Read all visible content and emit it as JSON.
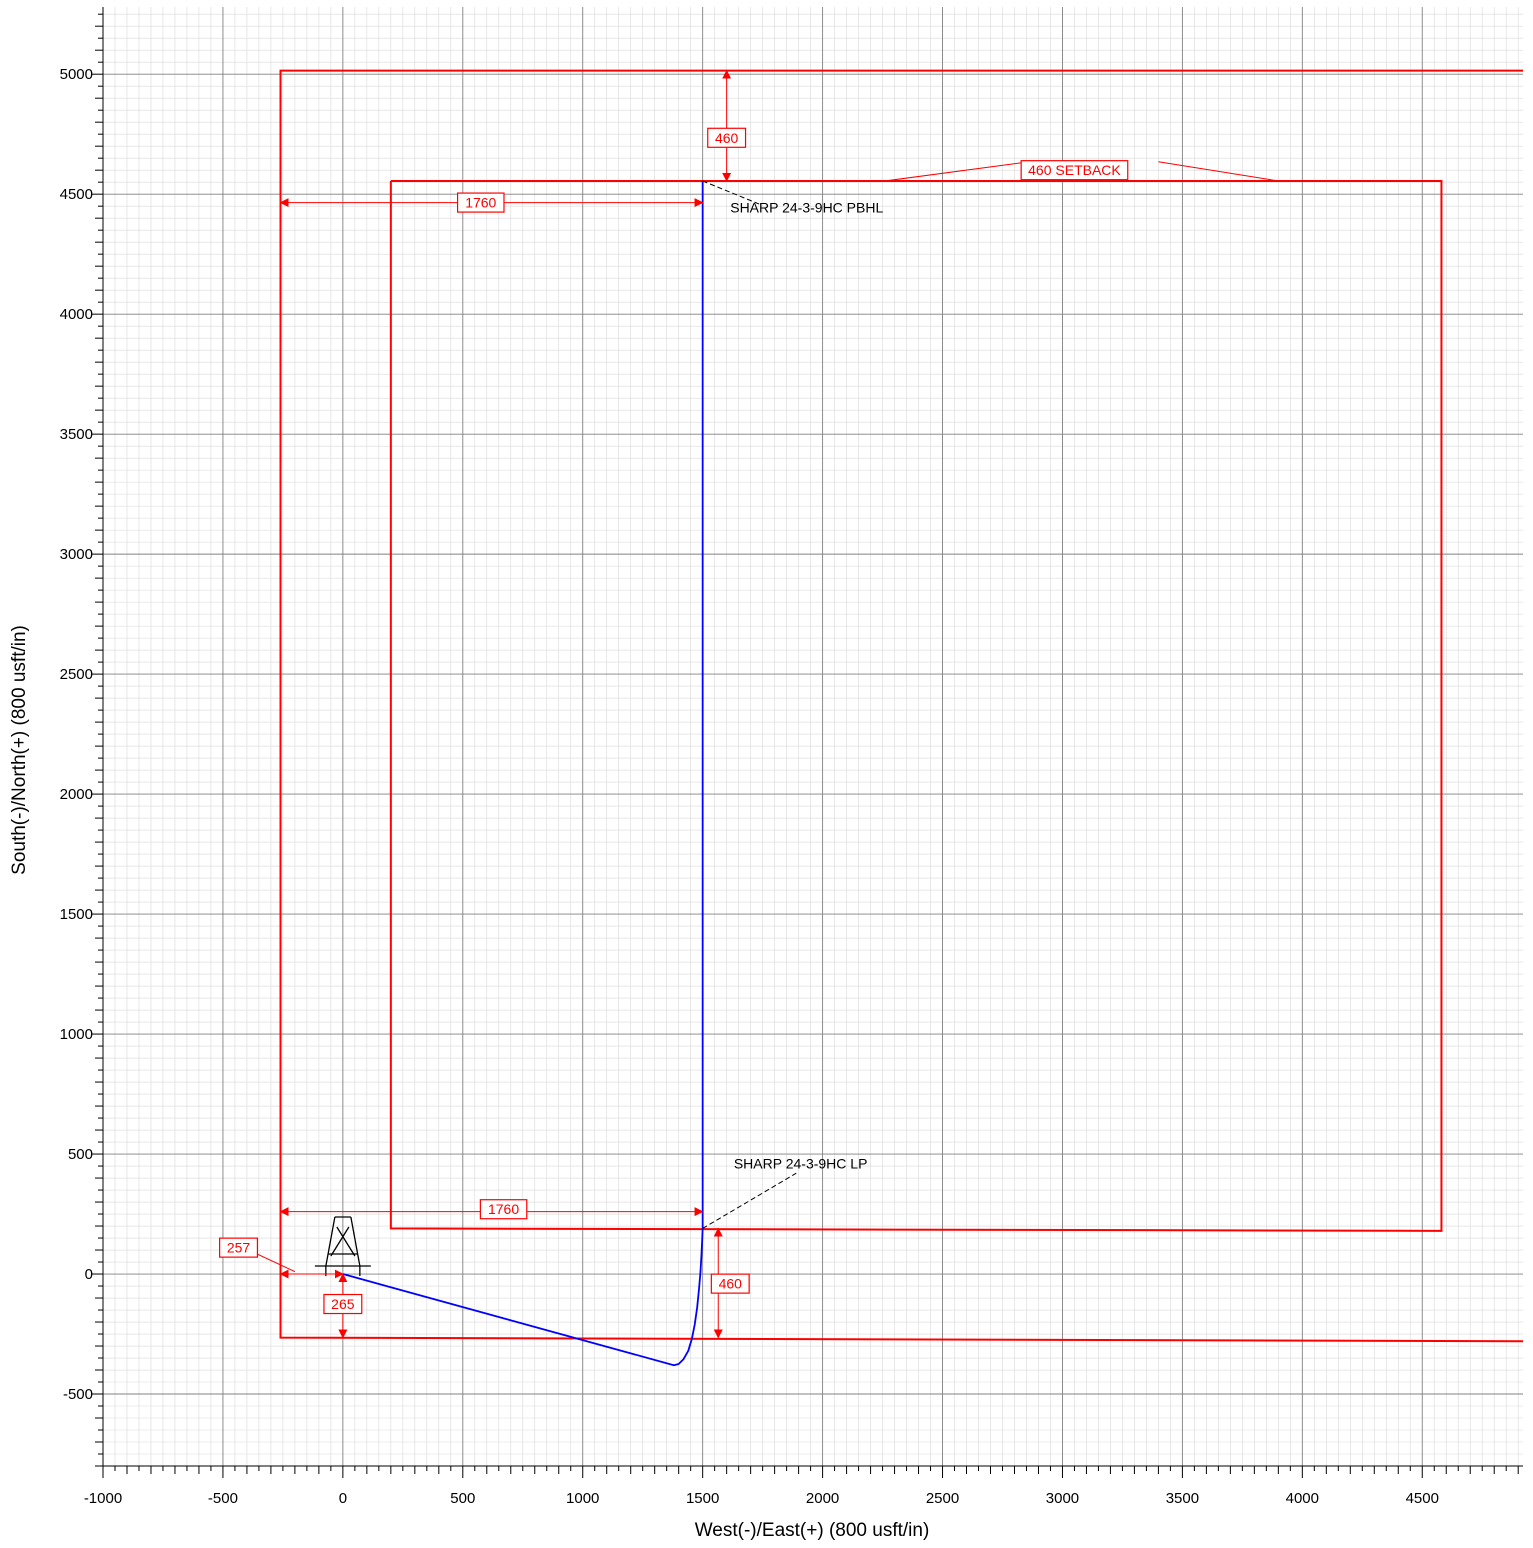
{
  "chart_data": {
    "type": "line",
    "title": "",
    "xlabel": "West(-)/East(+) (800 usft/in)",
    "ylabel": "South(-)/North(+) (800 usft/in)",
    "xlim": [
      -1000,
      4920
    ],
    "ylim": [
      -800,
      5280
    ],
    "x_major_step": 500,
    "y_major_step": 500,
    "minor_step": 50,
    "grid": true,
    "x_ticks": [
      -1000,
      -500,
      0,
      500,
      1000,
      1500,
      2000,
      2500,
      3000,
      3500,
      4000,
      4500
    ],
    "y_ticks": [
      -500,
      0,
      500,
      1000,
      1500,
      2000,
      2500,
      3000,
      3500,
      4000,
      4500,
      5000
    ],
    "colors": {
      "wellpath": "#0000ff",
      "boundary": "#ff0000",
      "grid_major": "#808080",
      "grid_minor": "#d9d9d9",
      "annotation": "#000000"
    },
    "series": [
      {
        "name": "",
        "color": "#0000ff",
        "x": [
          0,
          1380,
          1400,
          1420,
          1440,
          1455,
          1467,
          1477,
          1485,
          1491,
          1495,
          1498,
          1500,
          1500,
          1500
        ],
        "y": [
          0,
          -380,
          -375,
          -355,
          -320,
          -270,
          -210,
          -140,
          -60,
          10,
          80,
          140,
          190,
          1000,
          4555
        ]
      }
    ],
    "polygons": [
      {
        "role": "lease-boundary",
        "color": "#ff0000",
        "x": [
          4920,
          -260,
          -260,
          4920
        ],
        "y": [
          5015,
          5015,
          -265,
          -280
        ]
      },
      {
        "role": "setback",
        "color": "#ff0000",
        "x": [
          200,
          4580,
          4580,
          200,
          200
        ],
        "y": [
          4555,
          4555,
          180,
          190,
          4555
        ]
      }
    ],
    "annotations": [
      {
        "text": "SHARP 24-3-9HC PBHL",
        "x": 1615,
        "y": 4445,
        "leader_from": [
          1500,
          4555
        ],
        "leader_to": [
          1745,
          4455
        ]
      },
      {
        "text": "SHARP 24-3-9HC LP",
        "x": 1630,
        "y": 460,
        "leader_from": [
          1500,
          190
        ],
        "leader_to": [
          1890,
          420
        ]
      }
    ],
    "dimensions": [
      {
        "label": "460",
        "x1": 1600,
        "y1": 5015,
        "x2": 1600,
        "y2": 4555,
        "label_x": 1600,
        "label_y": 4735
      },
      {
        "label": "460 SETBACK",
        "x1": 3050,
        "y1": 4600,
        "x2": 3050,
        "y2": 4600,
        "label_x": 3050,
        "label_y": 4600,
        "leaders": [
          [
            2860,
            4635,
            2260,
            4555
          ],
          [
            3400,
            4635,
            3900,
            4555
          ]
        ]
      },
      {
        "label": "1760",
        "x1": -260,
        "y1": 4465,
        "x2": 1500,
        "y2": 4465,
        "label_x": 575,
        "label_y": 4465
      },
      {
        "label": "1760",
        "x1": -260,
        "y1": 260,
        "x2": 1500,
        "y2": 260,
        "label_x": 670,
        "label_y": 270
      },
      {
        "label": "460",
        "x1": 1565,
        "y1": 190,
        "x2": 1565,
        "y2": -265,
        "label_x": 1615,
        "label_y": -40
      },
      {
        "label": "265",
        "x1": 0,
        "y1": 0,
        "x2": 0,
        "y2": -265,
        "label_x": 0,
        "label_y": -125
      },
      {
        "label": "257",
        "x1": -260,
        "y1": 0,
        "x2": 0,
        "y2": 0,
        "label_x": -435,
        "label_y": 110,
        "leader": [
          -415,
          110,
          -200,
          10
        ]
      }
    ]
  }
}
